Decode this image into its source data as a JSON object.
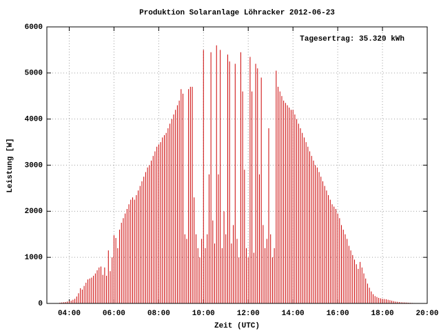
{
  "chart_data": {
    "type": "impulse",
    "title": "Produktion Solaranlage Löhracker 2012-06-23",
    "annotation": "Tagesertrag: 35.320 kWh",
    "x_label": "Zeit (UTC)",
    "y_label": "Leistung [W]",
    "color": "#cc0000",
    "grid": true,
    "xlim": [
      180,
      1200
    ],
    "ylim": [
      0,
      6000
    ],
    "xticks": [
      {
        "value": 240,
        "label": "04:00"
      },
      {
        "value": 360,
        "label": "06:00"
      },
      {
        "value": 480,
        "label": "08:00"
      },
      {
        "value": 600,
        "label": "10:00"
      },
      {
        "value": 720,
        "label": "12:00"
      },
      {
        "value": 840,
        "label": "14:00"
      },
      {
        "value": 960,
        "label": "16:00"
      },
      {
        "value": 1080,
        "label": "18:00"
      },
      {
        "value": 1200,
        "label": "20:00"
      }
    ],
    "yticks": [
      0,
      1000,
      2000,
      3000,
      4000,
      5000,
      6000
    ],
    "x": [
      215,
      220,
      225,
      230,
      235,
      240,
      245,
      250,
      255,
      260,
      265,
      270,
      275,
      280,
      285,
      290,
      295,
      300,
      305,
      310,
      315,
      320,
      325,
      330,
      335,
      340,
      345,
      350,
      355,
      360,
      365,
      370,
      375,
      380,
      385,
      390,
      395,
      400,
      405,
      410,
      415,
      420,
      425,
      430,
      435,
      440,
      445,
      450,
      455,
      460,
      465,
      470,
      475,
      480,
      485,
      490,
      495,
      500,
      505,
      510,
      515,
      520,
      525,
      530,
      535,
      540,
      545,
      550,
      555,
      560,
      565,
      570,
      575,
      580,
      585,
      590,
      595,
      600,
      605,
      610,
      615,
      620,
      625,
      630,
      635,
      640,
      645,
      650,
      655,
      660,
      665,
      670,
      675,
      680,
      685,
      690,
      695,
      700,
      705,
      710,
      715,
      720,
      725,
      730,
      735,
      740,
      745,
      750,
      755,
      760,
      765,
      770,
      775,
      780,
      785,
      790,
      795,
      800,
      805,
      810,
      815,
      820,
      825,
      830,
      835,
      840,
      845,
      850,
      855,
      860,
      865,
      870,
      875,
      880,
      885,
      890,
      895,
      900,
      905,
      910,
      915,
      920,
      925,
      930,
      935,
      940,
      945,
      950,
      955,
      960,
      965,
      970,
      975,
      980,
      985,
      990,
      995,
      1000,
      1005,
      1010,
      1015,
      1020,
      1025,
      1030,
      1035,
      1040,
      1045,
      1050,
      1055,
      1060,
      1065,
      1070,
      1075,
      1080,
      1085,
      1090,
      1095,
      1100,
      1105,
      1110,
      1115,
      1120,
      1125,
      1130,
      1135,
      1140,
      1145,
      1150,
      1155,
      1160,
      1165,
      1170,
      1175,
      1180,
      1185
    ],
    "values": [
      15,
      20,
      25,
      30,
      40,
      50,
      60,
      80,
      100,
      150,
      220,
      330,
      300,
      380,
      450,
      520,
      540,
      560,
      600,
      650,
      720,
      780,
      800,
      620,
      780,
      600,
      1150,
      700,
      1000,
      1480,
      1420,
      1200,
      1600,
      1750,
      1850,
      1950,
      2050,
      2150,
      2250,
      2300,
      2250,
      2350,
      2450,
      2550,
      2650,
      2750,
      2850,
      2950,
      3000,
      3100,
      3200,
      3300,
      3400,
      3450,
      3500,
      3600,
      3650,
      3700,
      3800,
      3900,
      4000,
      4100,
      4200,
      4300,
      4400,
      4650,
      4550,
      1500,
      1400,
      4650,
      4700,
      4700,
      2300,
      1500,
      1200,
      1000,
      1400,
      5500,
      1200,
      1500,
      2800,
      5450,
      1800,
      1300,
      5600,
      2800,
      5500,
      1200,
      2000,
      1500,
      5400,
      5250,
      1300,
      1700,
      5200,
      1400,
      1000,
      5450,
      4600,
      2900,
      1200,
      1000,
      5350,
      4600,
      1100,
      5200,
      5100,
      2800,
      4900,
      1700,
      1200,
      1400,
      3800,
      1500,
      1000,
      1200,
      5050,
      4700,
      4600,
      4500,
      4400,
      4350,
      4300,
      4250,
      4200,
      4200,
      4100,
      4000,
      3900,
      3800,
      3700,
      3600,
      3500,
      3400,
      3300,
      3200,
      3100,
      3000,
      2950,
      2850,
      2750,
      2650,
      2550,
      2450,
      2350,
      2250,
      2150,
      2100,
      2050,
      1950,
      1850,
      1700,
      1600,
      1500,
      1400,
      1250,
      1150,
      1050,
      950,
      850,
      750,
      900,
      780,
      650,
      540,
      430,
      340,
      260,
      200,
      160,
      140,
      120,
      110,
      100,
      95,
      90,
      80,
      70,
      60,
      50,
      40,
      35,
      30,
      25,
      22,
      20,
      18,
      15,
      12,
      10,
      8,
      6,
      5,
      4,
      3
    ]
  }
}
